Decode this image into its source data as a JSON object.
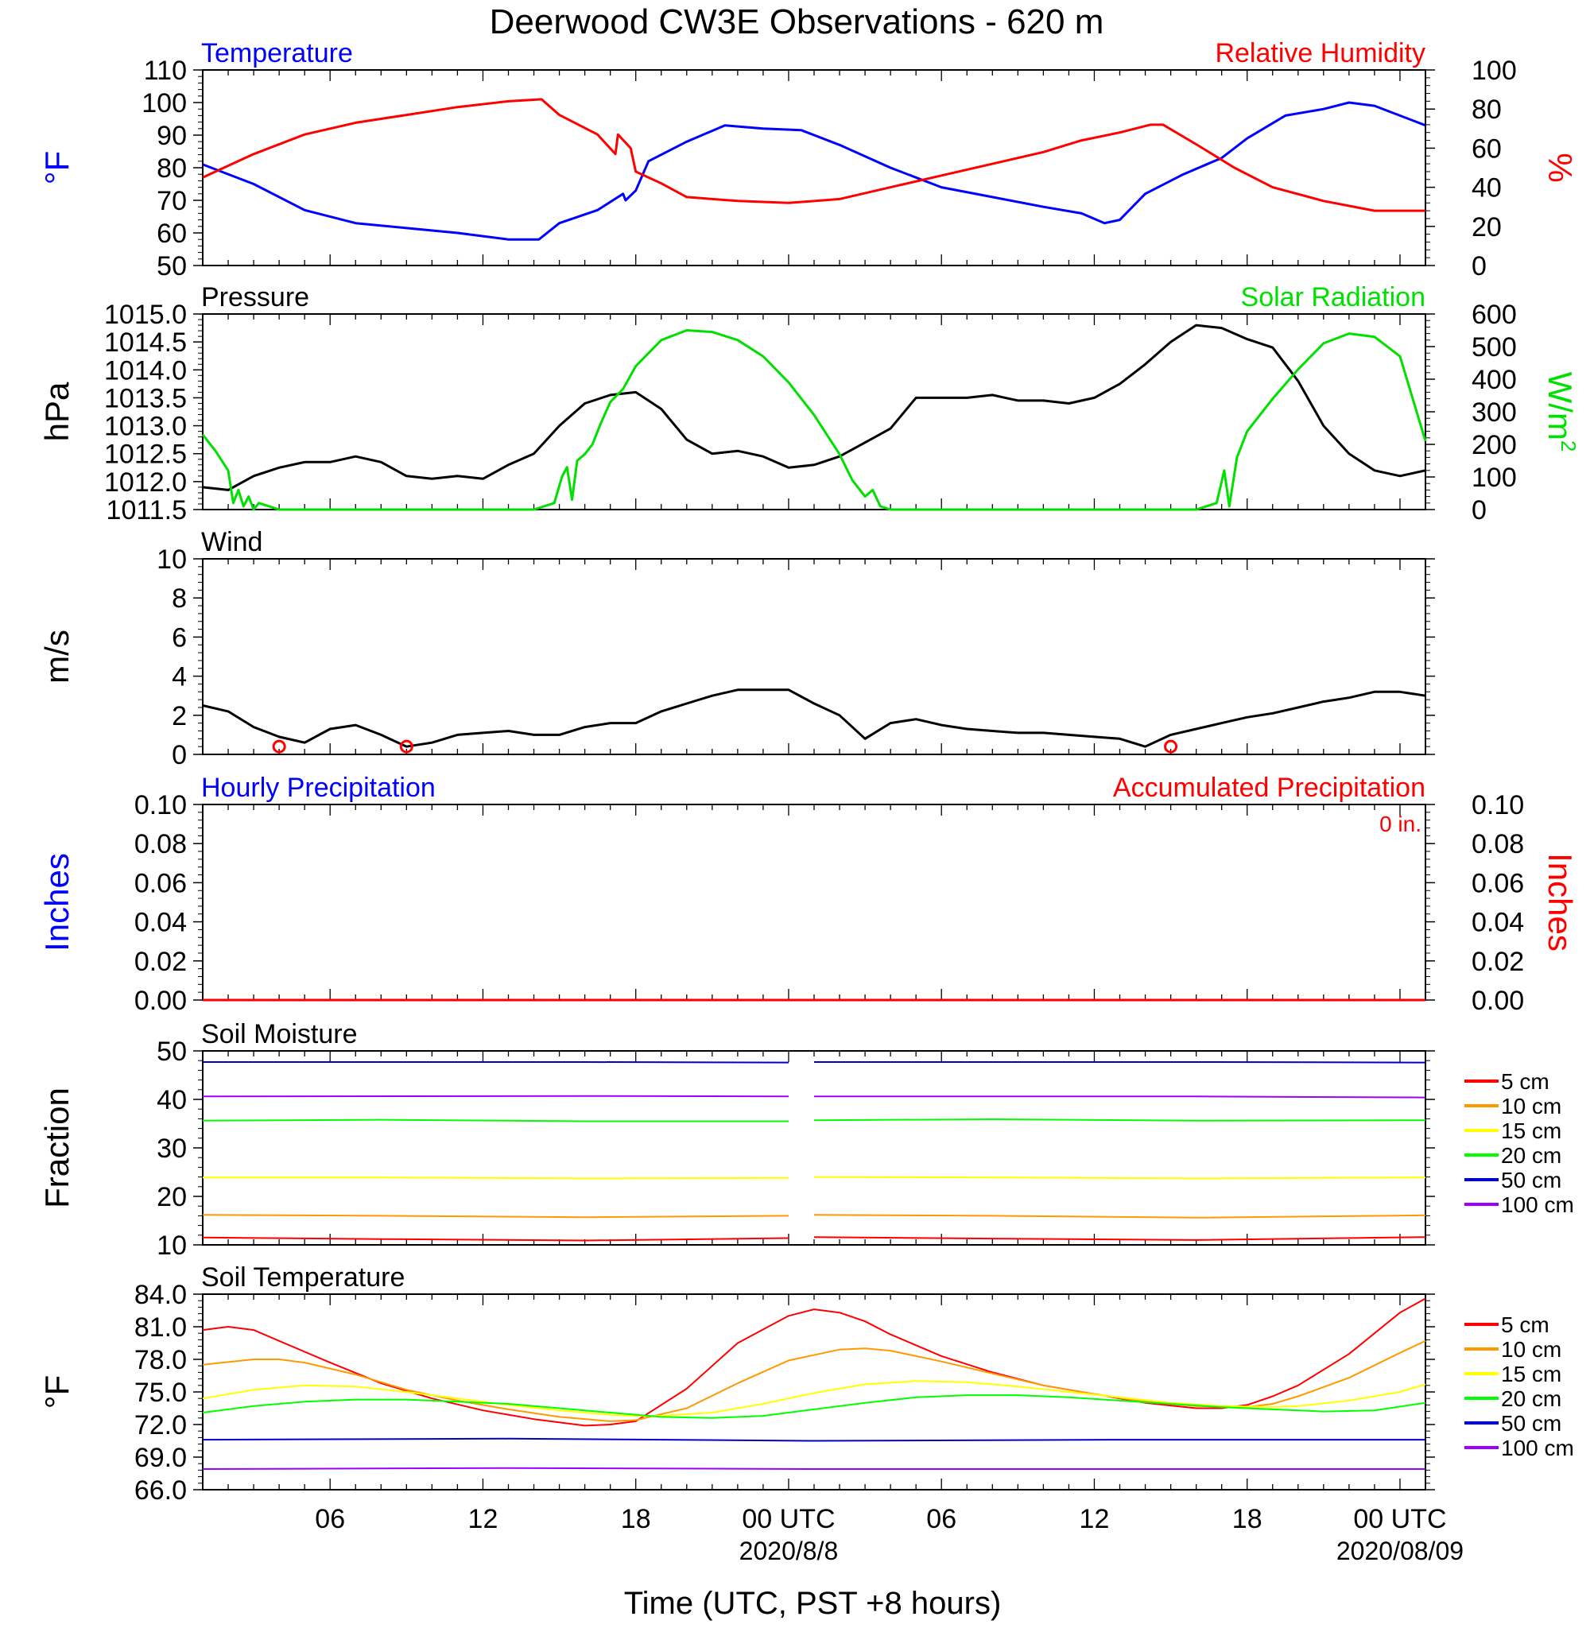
{
  "title": "Deerwood CW3E Observations - 620 m",
  "xlabel": "Time (UTC, PST +8 hours)",
  "x_ticks": [
    {
      "hours": 6,
      "label": "06"
    },
    {
      "hours": 12,
      "label": "12"
    },
    {
      "hours": 18,
      "label": "18"
    },
    {
      "hours": 24,
      "label": "00 UTC",
      "sublabel": "2020/8/8"
    },
    {
      "hours": 30,
      "label": "06"
    },
    {
      "hours": 36,
      "label": "12"
    },
    {
      "hours": 42,
      "label": "18"
    },
    {
      "hours": 48,
      "label": "00 UTC",
      "sublabel": "2020/08/09"
    }
  ],
  "colors": {
    "blue": "#0000ff",
    "red": "#ff0000",
    "green": "#00e000",
    "black": "#000000",
    "orange": "#ff9900",
    "yellow": "#ffff00",
    "soil_green": "#00ff00",
    "navy": "#0000cc",
    "purple": "#9900ff"
  },
  "chart_data": [
    {
      "type": "line",
      "left_title": "Temperature",
      "right_title": "Relative Humidity",
      "left_axis_label": "°F",
      "right_axis_label": "%",
      "ylim_left": [
        50,
        110
      ],
      "ylim_right": [
        0,
        100
      ],
      "left_ticks": [
        "50",
        "60",
        "70",
        "80",
        "90",
        "100",
        "110"
      ],
      "right_ticks": [
        "0",
        "20",
        "40",
        "60",
        "80",
        "100"
      ],
      "xlim_hours": [
        1,
        49
      ],
      "series": [
        {
          "name": "Temperature",
          "axis": "left",
          "x": [
            1,
            3,
            5,
            7,
            9,
            11,
            13,
            14.2,
            15,
            16.5,
            17.5,
            17.6,
            18,
            18.5,
            20,
            21.5,
            23,
            24.5,
            26,
            28,
            30,
            32,
            34,
            35.5,
            36.4,
            37,
            38,
            39.5,
            41,
            42,
            43.5,
            45,
            46,
            47,
            49
          ],
          "values": [
            81,
            75,
            67,
            63,
            61.5,
            60,
            58,
            58,
            63,
            67,
            72,
            70,
            73,
            82,
            88,
            93,
            92,
            91.5,
            87,
            80,
            74,
            71,
            68,
            66,
            63,
            64,
            72,
            78,
            83,
            89,
            96,
            98,
            100,
            99,
            93
          ]
        },
        {
          "name": "Relative Humidity",
          "axis": "right",
          "x": [
            1,
            3,
            5,
            7,
            9,
            11,
            13,
            14.3,
            15,
            16.5,
            17.2,
            17.3,
            17.8,
            18,
            19,
            20,
            22,
            24,
            26,
            28,
            30,
            32,
            34,
            35.5,
            37,
            38.2,
            38.7,
            40,
            41.5,
            43,
            45,
            47,
            49
          ],
          "values": [
            45,
            57,
            67,
            73,
            77,
            81,
            84,
            85,
            77,
            67,
            57,
            67,
            60,
            48,
            42,
            35,
            33,
            32,
            34,
            40,
            46,
            52,
            58,
            64,
            68,
            72,
            72,
            62,
            50,
            40,
            33,
            28,
            28
          ]
        }
      ]
    },
    {
      "type": "line",
      "left_title": "Pressure",
      "right_title": "Solar Radiation",
      "left_axis_label": "hPa",
      "right_axis_label": "W/m",
      "right_axis_label_sup": "2",
      "ylim_left": [
        1011.5,
        1015.0
      ],
      "ylim_right": [
        0,
        600
      ],
      "left_ticks": [
        "1011.5",
        "1012.0",
        "1012.5",
        "1013.0",
        "1013.5",
        "1014.0",
        "1014.5",
        "1015.0"
      ],
      "right_ticks": [
        "0",
        "100",
        "200",
        "300",
        "400",
        "500",
        "600"
      ],
      "xlim_hours": [
        1,
        49
      ],
      "series": [
        {
          "name": "Pressure",
          "axis": "left",
          "x": [
            1,
            2,
            3,
            4,
            5,
            6,
            7,
            8,
            9,
            10,
            11,
            12,
            13,
            14,
            15,
            16,
            17,
            18,
            19,
            20,
            21,
            22,
            23,
            24,
            25,
            26,
            27,
            28,
            29,
            30,
            31,
            32,
            33,
            34,
            35,
            36,
            37,
            38,
            39,
            40,
            41,
            42,
            43,
            44,
            45,
            46,
            47,
            48,
            49
          ],
          "values": [
            1011.9,
            1011.85,
            1012.1,
            1012.25,
            1012.35,
            1012.35,
            1012.45,
            1012.35,
            1012.1,
            1012.05,
            1012.1,
            1012.05,
            1012.3,
            1012.5,
            1013.0,
            1013.4,
            1013.55,
            1013.6,
            1013.3,
            1012.75,
            1012.5,
            1012.55,
            1012.45,
            1012.25,
            1012.3,
            1012.45,
            1012.7,
            1012.95,
            1013.5,
            1013.5,
            1013.5,
            1013.55,
            1013.45,
            1013.45,
            1013.4,
            1013.5,
            1013.75,
            1014.1,
            1014.5,
            1014.8,
            1014.75,
            1014.55,
            1014.4,
            1013.8,
            1013.0,
            1012.5,
            1012.2,
            1012.1,
            1012.2
          ]
        },
        {
          "name": "Solar Radiation",
          "axis": "right",
          "x": [
            1,
            1.5,
            2,
            2.2,
            2.4,
            2.6,
            2.8,
            3,
            3.2,
            4,
            13,
            14,
            14.8,
            15.1,
            15.3,
            15.5,
            15.7,
            16,
            16.3,
            16.6,
            17,
            17.5,
            18,
            19,
            20,
            21,
            22,
            23,
            24,
            25,
            26,
            26.5,
            27,
            27.3,
            27.6,
            28,
            29,
            40,
            40.8,
            41.1,
            41.3,
            41.6,
            42,
            43,
            44,
            45,
            46,
            47,
            48,
            49
          ],
          "values": [
            230,
            180,
            120,
            20,
            60,
            10,
            40,
            0,
            20,
            0,
            0,
            0,
            20,
            100,
            130,
            30,
            150,
            170,
            200,
            260,
            330,
            370,
            440,
            520,
            550,
            545,
            520,
            470,
            390,
            290,
            170,
            90,
            40,
            60,
            10,
            0,
            0,
            0,
            20,
            120,
            10,
            160,
            240,
            340,
            430,
            510,
            540,
            530,
            470,
            210
          ]
        }
      ]
    },
    {
      "type": "line",
      "left_title": "Wind",
      "left_axis_label": "m/s",
      "ylim_left": [
        0,
        10
      ],
      "left_ticks": [
        "0",
        "2",
        "4",
        "6",
        "8",
        "10"
      ],
      "xlim_hours": [
        1,
        49
      ],
      "series": [
        {
          "name": "Wind Speed",
          "axis": "left",
          "x": [
            1,
            2,
            3,
            4,
            5,
            6,
            7,
            8,
            9,
            10,
            11,
            12,
            13,
            14,
            15,
            16,
            17,
            18,
            19,
            20,
            21,
            22,
            23,
            24,
            25,
            26,
            27,
            28,
            29,
            30,
            31,
            32,
            33,
            34,
            35,
            36,
            37,
            38,
            39,
            40,
            41,
            42,
            43,
            44,
            45,
            46,
            47,
            48,
            49
          ],
          "values": [
            2.5,
            2.2,
            1.4,
            0.9,
            0.6,
            1.3,
            1.5,
            1.0,
            0.4,
            0.6,
            1.0,
            1.1,
            1.2,
            1.0,
            1.0,
            1.4,
            1.6,
            1.6,
            2.2,
            2.6,
            3.0,
            3.3,
            3.3,
            3.3,
            2.6,
            2.0,
            0.8,
            1.6,
            1.8,
            1.5,
            1.3,
            1.2,
            1.1,
            1.1,
            1.0,
            0.9,
            0.8,
            0.4,
            1.0,
            1.3,
            1.6,
            1.9,
            2.1,
            2.4,
            2.7,
            2.9,
            3.2,
            3.2,
            3.0
          ]
        }
      ],
      "calm_markers_hours": [
        4,
        9,
        39
      ]
    },
    {
      "type": "line",
      "left_title": "Hourly Precipitation",
      "right_title": "Accumulated Precipitation",
      "total_label": "0 in.",
      "left_axis_label": "Inches",
      "right_axis_label": "Inches",
      "ylim_left": [
        0,
        0.1
      ],
      "ylim_right": [
        0,
        0.1
      ],
      "left_ticks": [
        "0.00",
        "0.02",
        "0.04",
        "0.06",
        "0.08",
        "0.10"
      ],
      "right_ticks": [
        "0.00",
        "0.02",
        "0.04",
        "0.06",
        "0.08",
        "0.10"
      ],
      "xlim_hours": [
        1,
        49
      ],
      "series": [
        {
          "name": "Hourly Precipitation",
          "axis": "left",
          "x": [
            1,
            49
          ],
          "values": [
            0,
            0
          ]
        },
        {
          "name": "Accumulated Precipitation",
          "axis": "right",
          "x": [
            1,
            49
          ],
          "values": [
            0,
            0
          ]
        }
      ]
    },
    {
      "type": "line",
      "left_title": "Soil Moisture",
      "left_axis_label": "Fraction",
      "ylim_left": [
        10,
        50
      ],
      "left_ticks": [
        "10",
        "20",
        "30",
        "40",
        "50"
      ],
      "xlim_hours": [
        1,
        49
      ],
      "gap_hours": [
        24,
        25
      ],
      "legend": [
        "5 cm",
        "10 cm",
        "15 cm",
        "20 cm",
        "50 cm",
        "100 cm"
      ],
      "series": [
        {
          "name": "5 cm",
          "axis": "left",
          "x": [
            1,
            8,
            16,
            24,
            25,
            32,
            40,
            49
          ],
          "values": [
            11.5,
            11.2,
            10.9,
            11.4,
            11.6,
            11.3,
            11.0,
            11.6
          ]
        },
        {
          "name": "10 cm",
          "axis": "left",
          "x": [
            1,
            8,
            16,
            24,
            25,
            32,
            40,
            49
          ],
          "values": [
            16.2,
            16.0,
            15.7,
            16.0,
            16.2,
            16.0,
            15.6,
            16.1
          ]
        },
        {
          "name": "15 cm",
          "axis": "left",
          "x": [
            1,
            8,
            16,
            24,
            25,
            32,
            40,
            49
          ],
          "values": [
            23.9,
            23.9,
            23.7,
            23.8,
            24.0,
            23.9,
            23.7,
            23.9
          ]
        },
        {
          "name": "20 cm",
          "axis": "left",
          "x": [
            1,
            8,
            16,
            24,
            25,
            32,
            40,
            49
          ],
          "values": [
            35.6,
            35.8,
            35.5,
            35.5,
            35.7,
            35.9,
            35.6,
            35.7
          ]
        },
        {
          "name": "50 cm",
          "axis": "left",
          "x": [
            1,
            16,
            24,
            25,
            40,
            49
          ],
          "values": [
            47.7,
            47.7,
            47.6,
            47.7,
            47.7,
            47.6
          ]
        },
        {
          "name": "100 cm",
          "axis": "left",
          "x": [
            1,
            16,
            24,
            25,
            40,
            49
          ],
          "values": [
            40.6,
            40.7,
            40.6,
            40.6,
            40.6,
            40.4
          ]
        }
      ]
    },
    {
      "type": "line",
      "left_title": "Soil Temperature",
      "left_axis_label": "°F",
      "ylim_left": [
        66,
        84
      ],
      "left_ticks": [
        "66.0",
        "69.0",
        "72.0",
        "75.0",
        "78.0",
        "81.0",
        "84.0"
      ],
      "xlim_hours": [
        1,
        49
      ],
      "legend": [
        "5 cm",
        "10 cm",
        "15 cm",
        "20 cm",
        "50 cm",
        "100 cm"
      ],
      "series": [
        {
          "name": "5 cm",
          "axis": "left",
          "x": [
            1,
            2,
            3,
            4,
            6,
            8,
            10,
            12,
            14,
            16,
            17,
            18,
            20,
            22,
            24,
            25,
            26,
            27,
            28,
            30,
            32,
            34,
            36,
            38,
            40,
            41,
            42,
            43,
            44,
            46,
            48,
            49
          ],
          "values": [
            80.7,
            81.0,
            80.7,
            79.7,
            77.7,
            75.8,
            74.4,
            73.3,
            72.5,
            71.9,
            72.0,
            72.3,
            75.3,
            79.5,
            82.0,
            82.6,
            82.3,
            81.5,
            80.3,
            78.3,
            76.8,
            75.6,
            74.8,
            74.0,
            73.5,
            73.5,
            73.8,
            74.6,
            75.6,
            78.5,
            82.3,
            83.6
          ]
        },
        {
          "name": "10 cm",
          "axis": "left",
          "x": [
            1,
            3,
            4,
            5,
            7,
            9,
            11,
            13,
            15,
            17,
            18,
            20,
            22,
            24,
            26,
            27,
            28,
            30,
            32,
            34,
            36,
            38,
            40,
            42,
            43,
            44,
            46,
            48,
            49
          ],
          "values": [
            77.5,
            78.0,
            78.0,
            77.7,
            76.6,
            75.2,
            74.2,
            73.4,
            72.7,
            72.3,
            72.4,
            73.5,
            75.8,
            77.9,
            78.9,
            79.0,
            78.8,
            77.8,
            76.7,
            75.6,
            74.8,
            74.1,
            73.7,
            73.6,
            73.9,
            74.6,
            76.3,
            78.6,
            79.7
          ]
        },
        {
          "name": "15 cm",
          "axis": "left",
          "x": [
            1,
            3,
            5,
            7,
            9,
            11,
            13,
            15,
            17,
            18,
            19,
            21,
            23,
            25,
            27,
            29,
            31,
            33,
            35,
            37,
            39,
            41,
            43,
            44,
            46,
            48,
            49
          ],
          "values": [
            74.4,
            75.2,
            75.6,
            75.5,
            75.0,
            74.4,
            73.8,
            73.3,
            72.9,
            72.8,
            72.8,
            73.1,
            73.9,
            74.9,
            75.7,
            76.0,
            75.9,
            75.5,
            75.0,
            74.5,
            74.0,
            73.7,
            73.6,
            73.7,
            74.2,
            75.0,
            75.7
          ]
        },
        {
          "name": "20 cm",
          "axis": "left",
          "x": [
            1,
            3,
            5,
            7,
            9,
            11,
            13,
            15,
            17,
            19,
            21,
            23,
            25,
            27,
            29,
            31,
            33,
            35,
            37,
            39,
            41,
            43,
            45,
            47,
            49
          ],
          "values": [
            73.1,
            73.7,
            74.1,
            74.3,
            74.3,
            74.1,
            73.9,
            73.5,
            73.1,
            72.7,
            72.6,
            72.8,
            73.4,
            74.0,
            74.5,
            74.7,
            74.7,
            74.5,
            74.2,
            73.9,
            73.6,
            73.4,
            73.2,
            73.3,
            74.0
          ]
        },
        {
          "name": "50 cm",
          "axis": "left",
          "x": [
            1,
            13,
            25,
            37,
            49
          ],
          "values": [
            70.6,
            70.7,
            70.5,
            70.6,
            70.6
          ]
        },
        {
          "name": "100 cm",
          "axis": "left",
          "x": [
            1,
            13,
            25,
            37,
            49
          ],
          "values": [
            67.9,
            68.0,
            67.9,
            67.9,
            67.9
          ]
        }
      ]
    }
  ]
}
